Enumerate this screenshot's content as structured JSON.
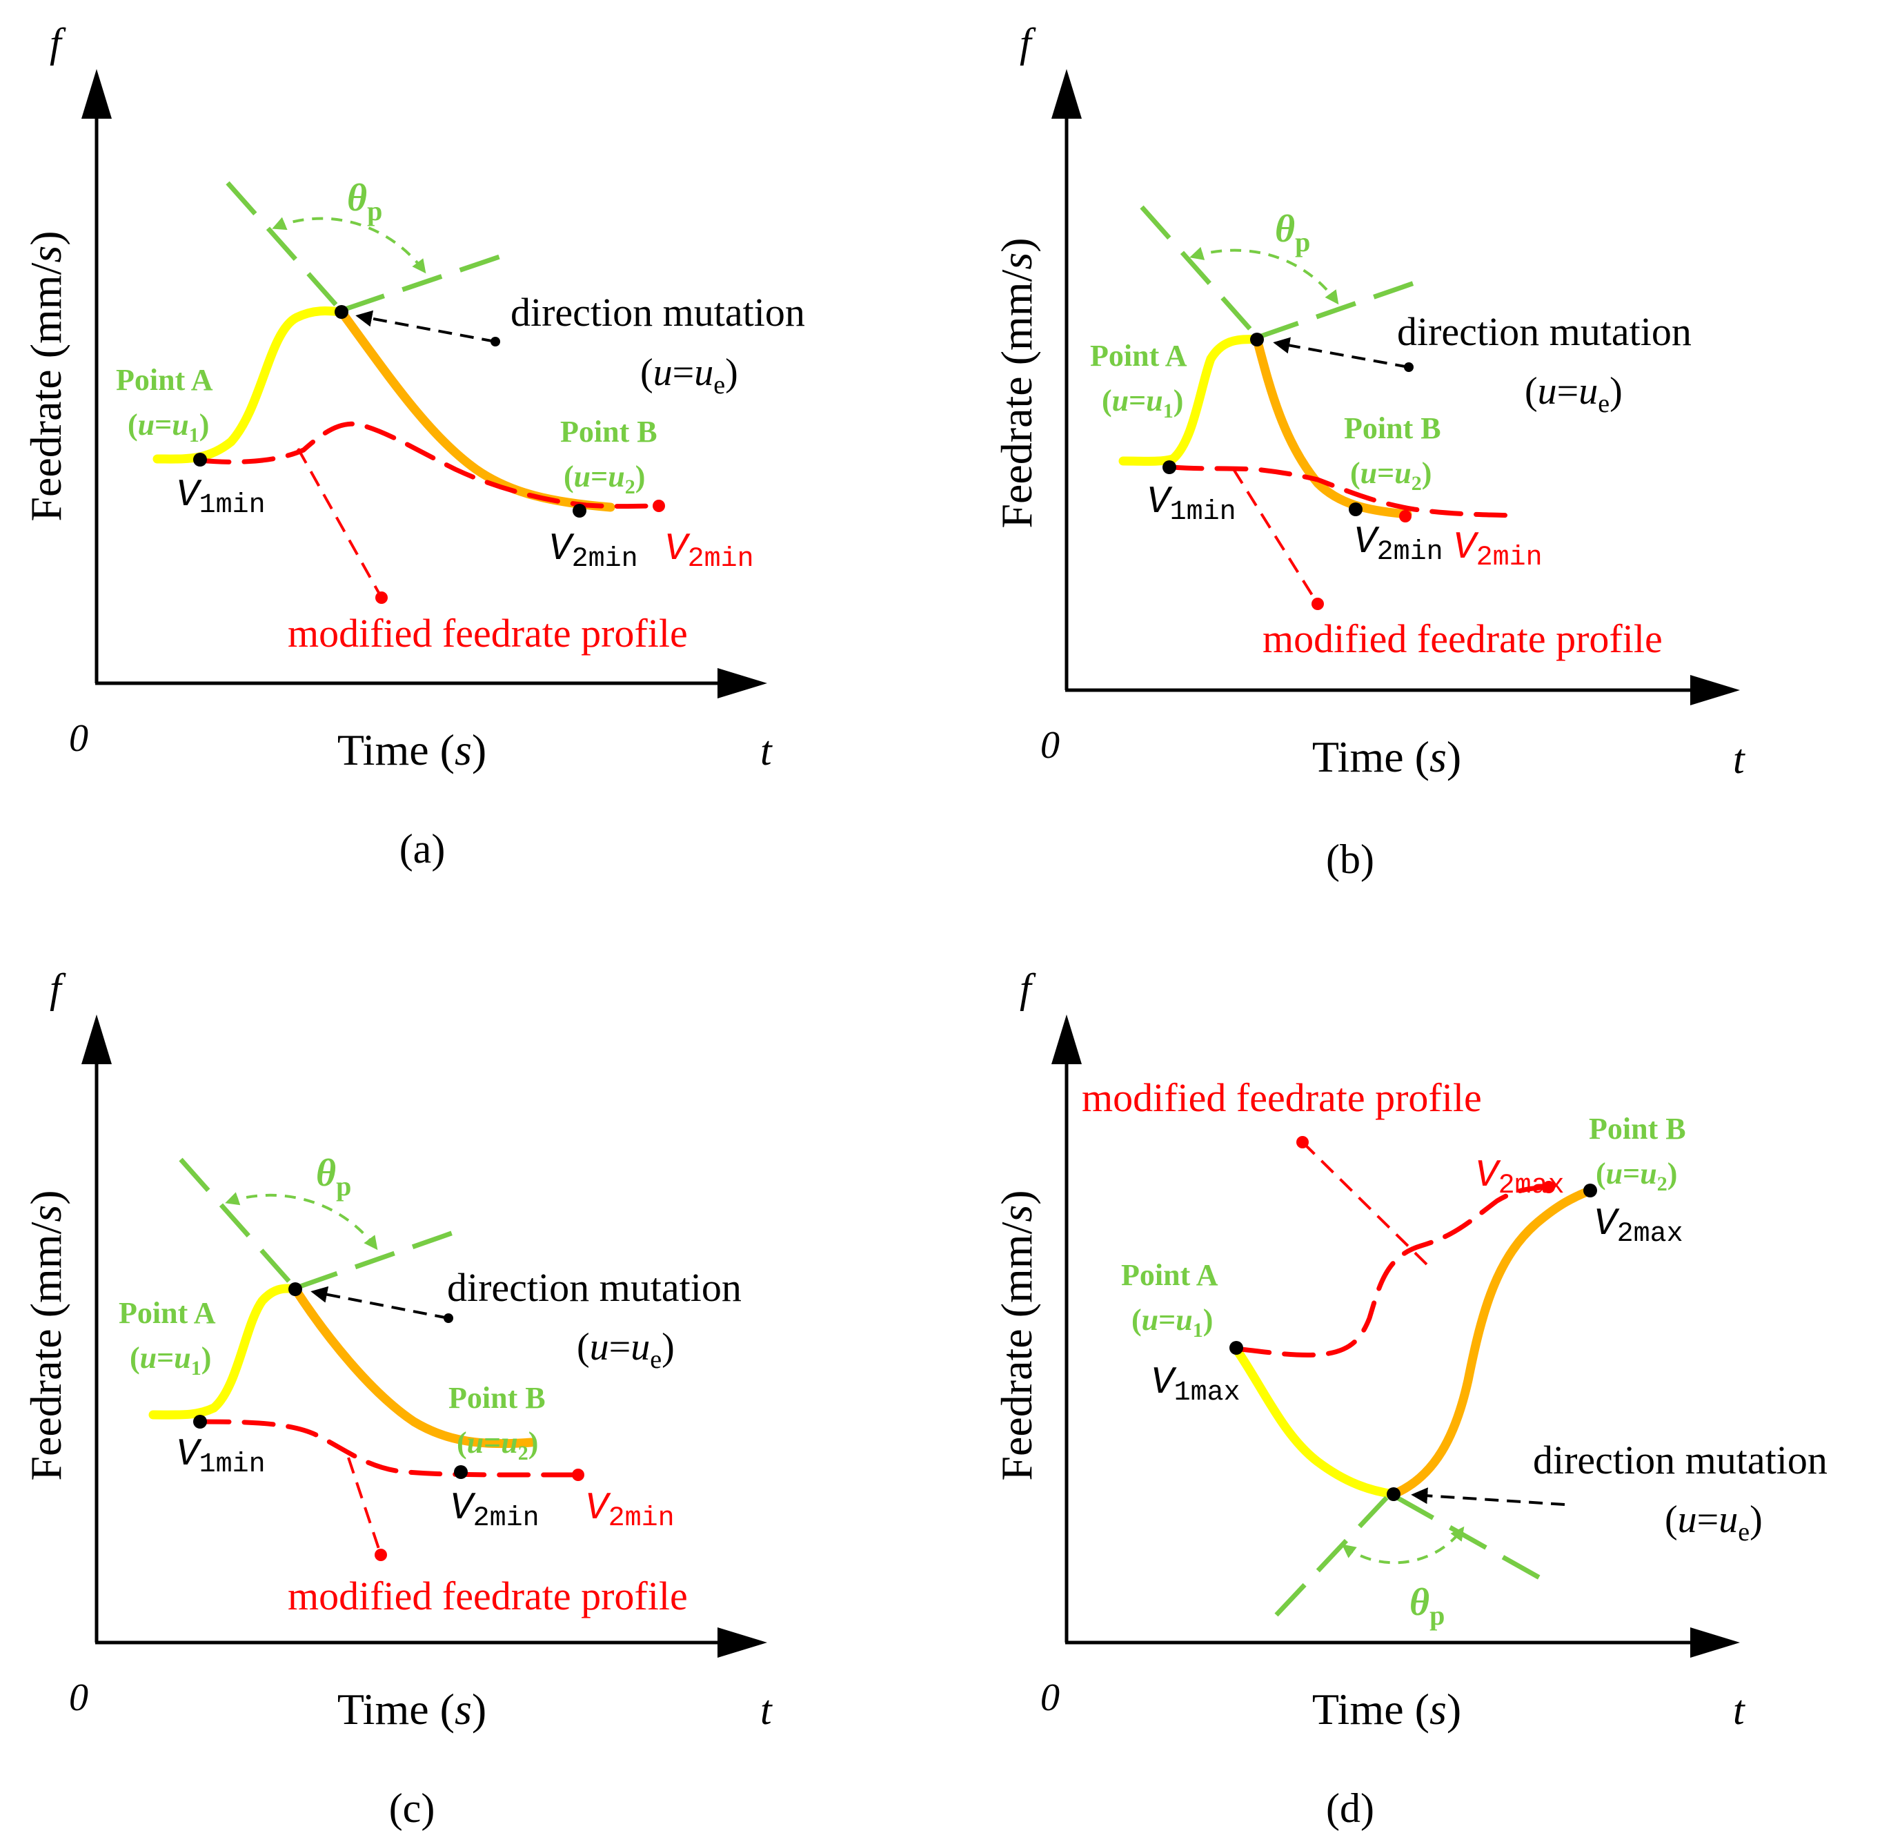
{
  "colors": {
    "axis": "#000000",
    "curve_first": "#ffff00",
    "curve_second": "#ffb000",
    "modified": "#ff0000",
    "angle": "#77cc44",
    "label_green": "#77cc44",
    "black": "#000000"
  },
  "panels": [
    {
      "caption": "(a)",
      "axis_y_symbol": "f",
      "axis_x_symbol": "t",
      "origin": "0",
      "y_title_prefix": "Feedrate (mm/",
      "y_title_var": "s",
      "y_title_suffix": ")",
      "x_title_prefix": "Time (",
      "x_title_var": "s",
      "x_title_suffix": ")",
      "theta": "θ",
      "theta_sub": "p",
      "mutation": "direction mutation",
      "mutation_u": "u",
      "mutation_eq": "=",
      "mutation_ue": "u",
      "mutation_sub": "e",
      "point_a": "Point A",
      "point_a_u": "u",
      "point_a_eq": "=",
      "point_a_u1": "u",
      "point_a_sub": "1",
      "point_b": "Point B",
      "point_b_u": "u",
      "point_b_eq": "=",
      "point_b_u2": "u",
      "point_b_sub": "2",
      "v1": "V",
      "v1_sub": "1min",
      "v2": "V",
      "v2_sub": "2min",
      "v2_red": "V",
      "v2_red_sub": "2min",
      "modified": "modified feedrate profile"
    },
    {
      "caption": "(b)",
      "axis_y_symbol": "f",
      "axis_x_symbol": "t",
      "origin": "0",
      "y_title_prefix": "Feedrate (mm/",
      "y_title_var": "s",
      "y_title_suffix": ")",
      "x_title_prefix": "Time (",
      "x_title_var": "s",
      "x_title_suffix": ")",
      "theta": "θ",
      "theta_sub": "p",
      "mutation": "direction mutation",
      "mutation_u": "u",
      "mutation_eq": "=",
      "mutation_ue": "u",
      "mutation_sub": "e",
      "point_a": "Point A",
      "point_a_u": "u",
      "point_a_eq": "=",
      "point_a_u1": "u",
      "point_a_sub": "1",
      "point_b": "Point B",
      "point_b_u": "u",
      "point_b_eq": "=",
      "point_b_u2": "u",
      "point_b_sub": "2",
      "v1": "V",
      "v1_sub": "1min",
      "v2": "V",
      "v2_sub": "2min",
      "v2_red": "V",
      "v2_red_sub": "2min",
      "modified": "modified feedrate profile"
    },
    {
      "caption": "(c)",
      "axis_y_symbol": "f",
      "axis_x_symbol": "t",
      "origin": "0",
      "y_title_prefix": "Feedrate (mm/",
      "y_title_var": "s",
      "y_title_suffix": ")",
      "x_title_prefix": "Time (",
      "x_title_var": "s",
      "x_title_suffix": ")",
      "theta": "θ",
      "theta_sub": "p",
      "mutation": "direction mutation",
      "mutation_u": "u",
      "mutation_eq": "=",
      "mutation_ue": "u",
      "mutation_sub": "e",
      "point_a": "Point A",
      "point_a_u": "u",
      "point_a_eq": "=",
      "point_a_u1": "u",
      "point_a_sub": "1",
      "point_b": "Point B",
      "point_b_u": "u",
      "point_b_eq": "=",
      "point_b_u2": "u",
      "point_b_sub": "2",
      "v1": "V",
      "v1_sub": "1min",
      "v2": "V",
      "v2_sub": "2min",
      "v2_red": "V",
      "v2_red_sub": "2min",
      "modified": "modified feedrate profile"
    },
    {
      "caption": "(d)",
      "axis_y_symbol": "f",
      "axis_x_symbol": "t",
      "origin": "0",
      "y_title_prefix": "Feedrate (mm/",
      "y_title_var": "s",
      "y_title_suffix": ")",
      "x_title_prefix": "Time (",
      "x_title_var": "s",
      "x_title_suffix": ")",
      "theta": "θ",
      "theta_sub": "p",
      "mutation": "direction mutation",
      "mutation_u": "u",
      "mutation_eq": "=",
      "mutation_ue": "u",
      "mutation_sub": "e",
      "point_a": "Point A",
      "point_a_u": "u",
      "point_a_eq": "=",
      "point_a_u1": "u",
      "point_a_sub": "1",
      "point_b": "Point B",
      "point_b_u": "u",
      "point_b_eq": "=",
      "point_b_u2": "u",
      "point_b_sub": "2",
      "v1": "V",
      "v1_sub": "1max",
      "v2": "V",
      "v2_sub": "2max",
      "v2_red": "V",
      "v2_red_sub": "2max",
      "modified": "modified feedrate profile"
    }
  ]
}
